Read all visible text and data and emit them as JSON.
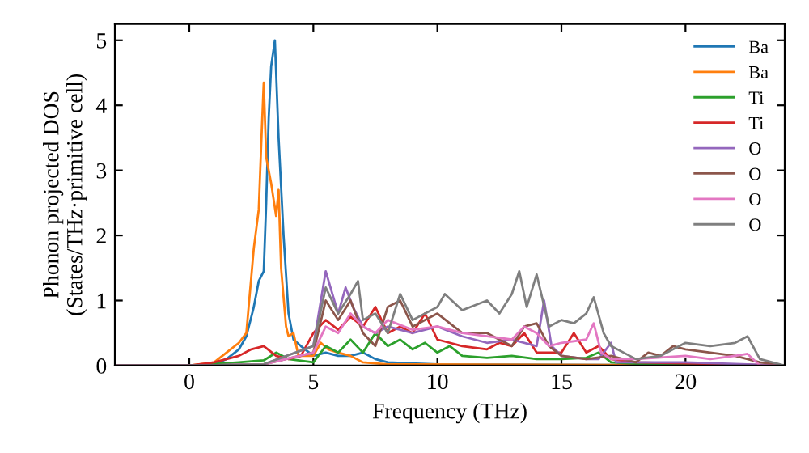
{
  "chart_data": {
    "type": "line",
    "xlabel": "Frequency (THz)",
    "ylabel": "Phonon projected DOS\n(States/THz·primitive cell)",
    "xlim": [
      -3,
      24
    ],
    "ylim": [
      0,
      5.25
    ],
    "xticks": [
      0,
      5,
      10,
      15,
      20
    ],
    "yticks": [
      0,
      1,
      2,
      3,
      4,
      5
    ],
    "legend": "top right",
    "grid": false,
    "marker": "none",
    "line_style": "solid",
    "series": [
      {
        "name": "Ba",
        "color": "#1f77b4",
        "x": [
          -3,
          0,
          1,
          1.5,
          2,
          2.3,
          2.6,
          2.8,
          3.0,
          3.1,
          3.2,
          3.3,
          3.45,
          3.6,
          3.8,
          4.0,
          4.2,
          4.5,
          5,
          5.5,
          6,
          6.5,
          7,
          7.5,
          8,
          10,
          24
        ],
        "values": [
          0,
          0,
          0.02,
          0.1,
          0.25,
          0.45,
          0.9,
          1.3,
          1.45,
          2.5,
          3.8,
          4.6,
          5.0,
          3.5,
          2.0,
          0.8,
          0.4,
          0.3,
          0.15,
          0.2,
          0.15,
          0.15,
          0.2,
          0.1,
          0.05,
          0.02,
          0
        ]
      },
      {
        "name": "Ba",
        "color": "#ff7f0e",
        "x": [
          -3,
          0,
          1,
          1.5,
          2,
          2.3,
          2.6,
          2.8,
          2.9,
          3.0,
          3.1,
          3.3,
          3.5,
          3.6,
          3.7,
          3.9,
          4.0,
          4.2,
          4.4,
          5,
          5.3,
          5.6,
          6,
          6.5,
          7,
          8,
          24
        ],
        "values": [
          0,
          0,
          0.05,
          0.2,
          0.35,
          0.5,
          1.8,
          2.4,
          3.4,
          4.35,
          3.2,
          2.8,
          2.3,
          2.7,
          1.5,
          0.6,
          0.45,
          0.5,
          0.15,
          0.15,
          0.35,
          0.25,
          0.2,
          0.15,
          0.05,
          0.02,
          0
        ]
      },
      {
        "name": "Ti",
        "color": "#2ca02c",
        "x": [
          -3,
          0,
          2,
          3,
          3.5,
          4,
          5,
          5.5,
          6,
          6.5,
          7,
          7.5,
          8,
          8.5,
          9,
          9.5,
          10,
          10.5,
          11,
          12,
          13,
          14,
          15,
          16,
          16.5,
          17,
          18,
          24
        ],
        "values": [
          0,
          0,
          0.05,
          0.08,
          0.2,
          0.1,
          0.05,
          0.3,
          0.2,
          0.4,
          0.2,
          0.5,
          0.3,
          0.4,
          0.25,
          0.35,
          0.2,
          0.3,
          0.15,
          0.12,
          0.15,
          0.1,
          0.1,
          0.12,
          0.2,
          0.05,
          0.03,
          0
        ]
      },
      {
        "name": "Ti",
        "color": "#d62728",
        "x": [
          -3,
          0,
          1,
          2,
          2.5,
          3,
          3.5,
          4,
          4.5,
          5,
          5.5,
          6,
          6.5,
          7,
          7.5,
          8,
          8.5,
          9,
          9.5,
          10,
          10.5,
          11,
          12,
          12.5,
          13,
          13.5,
          14,
          15,
          15.5,
          16,
          16.5,
          17,
          18,
          24
        ],
        "values": [
          0,
          0,
          0.05,
          0.15,
          0.25,
          0.3,
          0.15,
          0.1,
          0.15,
          0.5,
          0.7,
          0.55,
          0.75,
          0.6,
          0.9,
          0.5,
          0.6,
          0.5,
          0.8,
          0.4,
          0.35,
          0.3,
          0.25,
          0.35,
          0.3,
          0.5,
          0.2,
          0.2,
          0.5,
          0.2,
          0.3,
          0.1,
          0.05,
          0
        ]
      },
      {
        "name": "O",
        "color": "#9467bd",
        "x": [
          -3,
          0,
          3,
          5,
          5.5,
          6,
          6.3,
          6.6,
          7,
          7.5,
          8,
          9,
          10,
          11,
          12,
          13,
          14,
          14.3,
          14.6,
          15,
          16,
          16.5,
          17,
          17.2,
          18,
          20,
          24
        ],
        "values": [
          0,
          0,
          0.02,
          0.3,
          1.45,
          0.8,
          1.2,
          0.9,
          0.6,
          0.5,
          0.6,
          0.5,
          0.6,
          0.45,
          0.35,
          0.4,
          0.3,
          1.0,
          0.3,
          0.15,
          0.1,
          0.1,
          0.35,
          0.05,
          0.05,
          0.05,
          0
        ]
      },
      {
        "name": "O",
        "color": "#8c564b",
        "x": [
          -3,
          0,
          3,
          5,
          5.5,
          6,
          6.5,
          7,
          7.5,
          8,
          8.5,
          9,
          10,
          11,
          12,
          13,
          13.5,
          14,
          14.5,
          15,
          16,
          17,
          18,
          18.5,
          19,
          19.5,
          20,
          21,
          22,
          23,
          24
        ],
        "values": [
          0,
          0,
          0.02,
          0.2,
          1.0,
          0.7,
          1.0,
          0.5,
          0.3,
          0.9,
          1.0,
          0.6,
          0.8,
          0.5,
          0.5,
          0.3,
          0.6,
          0.65,
          0.3,
          0.15,
          0.1,
          0.15,
          0.05,
          0.2,
          0.15,
          0.3,
          0.25,
          0.2,
          0.15,
          0.05,
          0
        ]
      },
      {
        "name": "O",
        "color": "#e377c2",
        "x": [
          -3,
          0,
          3,
          5,
          5.5,
          6,
          6.5,
          7,
          7.5,
          8,
          9,
          10,
          11,
          12,
          13,
          13.5,
          14,
          14.5,
          15,
          16,
          16.3,
          16.6,
          17,
          18,
          20,
          21,
          22,
          22.5,
          23,
          24
        ],
        "values": [
          0,
          0,
          0.02,
          0.2,
          0.6,
          0.5,
          0.8,
          0.6,
          0.5,
          0.7,
          0.55,
          0.6,
          0.5,
          0.45,
          0.4,
          0.6,
          0.5,
          0.3,
          0.35,
          0.4,
          0.65,
          0.2,
          0.1,
          0.1,
          0.15,
          0.1,
          0.15,
          0.18,
          0,
          0
        ]
      },
      {
        "name": "O",
        "color": "#7f7f7f",
        "x": [
          -3,
          0,
          3,
          5,
          5.5,
          6,
          6.5,
          6.8,
          7,
          7.5,
          8,
          8.5,
          9,
          10,
          10.3,
          11,
          12,
          12.5,
          13,
          13.3,
          13.6,
          14,
          14.5,
          15,
          15.5,
          16,
          16.3,
          16.7,
          17,
          18,
          19,
          20,
          21,
          22,
          22.5,
          23,
          24
        ],
        "values": [
          0,
          0,
          0.02,
          0.3,
          1.2,
          0.8,
          1.1,
          1.3,
          0.7,
          0.8,
          0.5,
          1.1,
          0.7,
          0.9,
          1.1,
          0.85,
          1.0,
          0.8,
          1.1,
          1.45,
          0.9,
          1.4,
          0.6,
          0.7,
          0.65,
          0.8,
          1.05,
          0.5,
          0.3,
          0.1,
          0.15,
          0.35,
          0.3,
          0.35,
          0.45,
          0.1,
          0
        ]
      }
    ]
  }
}
